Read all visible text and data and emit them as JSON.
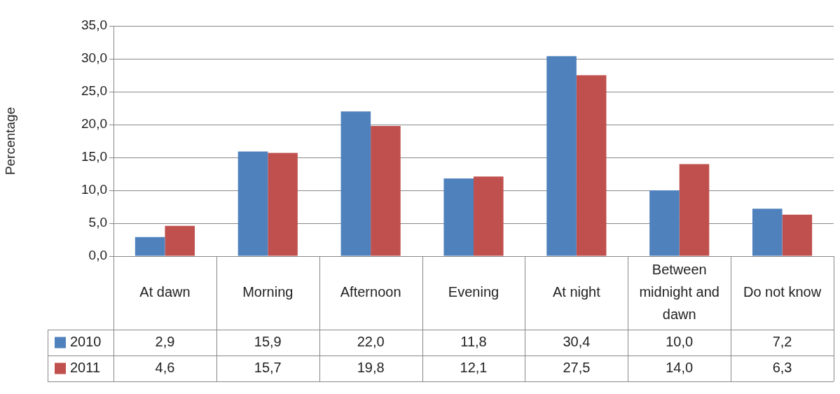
{
  "chart_data": {
    "type": "bar",
    "ylabel": "Percentage",
    "categories": [
      "At dawn",
      "Morning",
      "Afternoon",
      "Evening",
      "At night",
      "Between midnight and dawn",
      "Do not know"
    ],
    "series": [
      {
        "name": "2010",
        "color": "#4f81bd",
        "values": [
          2.9,
          15.9,
          22.0,
          11.8,
          30.4,
          10.0,
          7.2
        ],
        "value_labels": [
          "2,9",
          "15,9",
          "22,0",
          "11,8",
          "30,4",
          "10,0",
          "7,2"
        ]
      },
      {
        "name": "2011",
        "color": "#c0504d",
        "values": [
          4.6,
          15.7,
          19.8,
          12.1,
          27.5,
          14.0,
          6.3
        ],
        "value_labels": [
          "4,6",
          "15,7",
          "19,8",
          "12,1",
          "27,5",
          "14,0",
          "6,3"
        ]
      }
    ],
    "ylim": [
      0,
      35
    ],
    "yticks": [
      {
        "value": 0,
        "label": "0,0"
      },
      {
        "value": 5,
        "label": "5,0"
      },
      {
        "value": 10,
        "label": "10,0"
      },
      {
        "value": 15,
        "label": "15,0"
      },
      {
        "value": 20,
        "label": "20,0"
      },
      {
        "value": 25,
        "label": "25,0"
      },
      {
        "value": 30,
        "label": "30,0"
      },
      {
        "value": 35,
        "label": "35,0"
      }
    ],
    "grid": "y",
    "legend": "bottom left"
  }
}
